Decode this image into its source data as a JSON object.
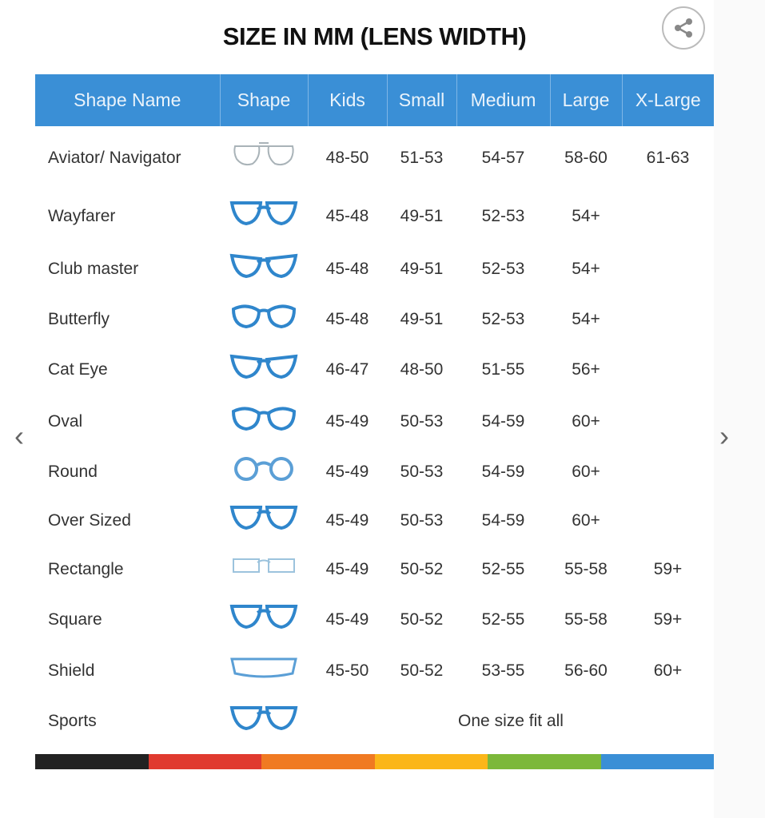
{
  "title": "SIZE IN MM (LENS WIDTH)",
  "headers": [
    "Shape Name",
    "Shape",
    "Kids",
    "Small",
    "Medium",
    "Large",
    "X-Large"
  ],
  "rows": [
    {
      "name": "Aviator/ Navigator",
      "icon": "aviator",
      "color": "#a9b3b8",
      "sizes": [
        "48-50",
        "51-53",
        "54-57",
        "58-60",
        "61-63"
      ]
    },
    {
      "name": "Wayfarer",
      "icon": "wayfarer",
      "color": "#2f86cc",
      "sizes": [
        "45-48",
        "49-51",
        "52-53",
        "54+",
        ""
      ]
    },
    {
      "name": "Club master",
      "icon": "clubmaster",
      "color": "#2f86cc",
      "sizes": [
        "45-48",
        "49-51",
        "52-53",
        "54+",
        ""
      ]
    },
    {
      "name": "Butterfly",
      "icon": "butterfly",
      "color": "#2f86cc",
      "sizes": [
        "45-48",
        "49-51",
        "52-53",
        "54+",
        ""
      ]
    },
    {
      "name": "Cat Eye",
      "icon": "cateye",
      "color": "#2f86cc",
      "sizes": [
        "46-47",
        "48-50",
        "51-55",
        "56+",
        ""
      ]
    },
    {
      "name": "Oval",
      "icon": "oval",
      "color": "#2f86cc",
      "sizes": [
        "45-49",
        "50-53",
        "54-59",
        "60+",
        ""
      ]
    },
    {
      "name": "Round",
      "icon": "round",
      "color": "#5b9fd6",
      "sizes": [
        "45-49",
        "50-53",
        "54-59",
        "60+",
        ""
      ]
    },
    {
      "name": "Over Sized",
      "icon": "oversized",
      "color": "#2f86cc",
      "sizes": [
        "45-49",
        "50-53",
        "54-59",
        "60+",
        ""
      ]
    },
    {
      "name": "Rectangle",
      "icon": "rectangle",
      "color": "#9cc3dd",
      "sizes": [
        "45-49",
        "50-52",
        "52-55",
        "55-58",
        "59+"
      ]
    },
    {
      "name": "Square",
      "icon": "square",
      "color": "#2f86cc",
      "sizes": [
        "45-49",
        "50-52",
        "52-55",
        "55-58",
        "59+"
      ]
    },
    {
      "name": "Shield",
      "icon": "shield",
      "color": "#5b9fd6",
      "sizes": [
        "45-50",
        "50-52",
        "53-55",
        "56-60",
        "60+"
      ]
    },
    {
      "name": "Sports",
      "icon": "sports",
      "color": "#2f86cc",
      "span_text": "One size fit all"
    }
  ],
  "color_bar": [
    "#222222",
    "#e03a2f",
    "#f07a22",
    "#fbb619",
    "#7cb83a",
    "#3a8fd6"
  ],
  "icons": {
    "share": "share-icon",
    "prev": "chevron-left-icon",
    "next": "chevron-right-icon"
  }
}
